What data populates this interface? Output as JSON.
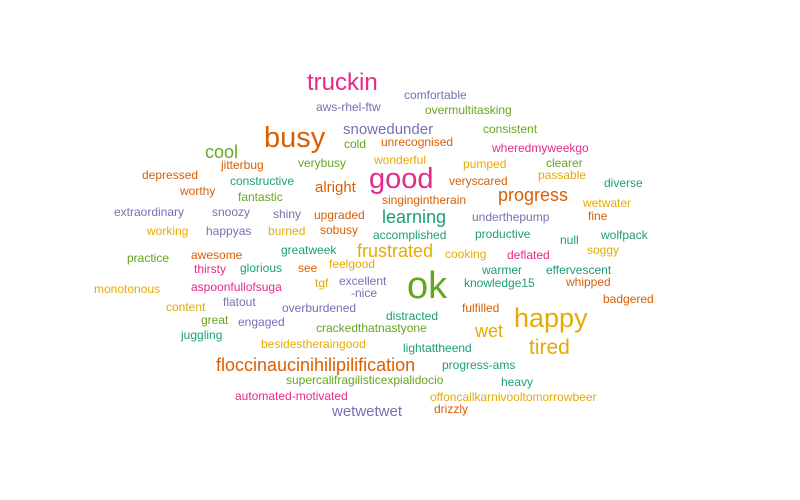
{
  "chart_data": {
    "type": "wordcloud",
    "title": "",
    "colors": {
      "pink": "#e7298a",
      "orange": "#d95f02",
      "purple": "#7570b3",
      "green": "#66a61e",
      "gold": "#e6ab02",
      "teal": "#1b9e77"
    },
    "words": [
      {
        "text": "truckin",
        "weight": 5,
        "color": "pink"
      },
      {
        "text": "comfortable",
        "weight": 1,
        "color": "purple"
      },
      {
        "text": "aws-rhel-ftw",
        "weight": 1,
        "color": "purple"
      },
      {
        "text": "overmultitasking",
        "weight": 1,
        "color": "green"
      },
      {
        "text": "busy",
        "weight": 7,
        "color": "orange"
      },
      {
        "text": "snowedunder",
        "weight": 2,
        "color": "purple"
      },
      {
        "text": "consistent",
        "weight": 1,
        "color": "green"
      },
      {
        "text": "cool",
        "weight": 3,
        "color": "green"
      },
      {
        "text": "cold",
        "weight": 1,
        "color": "green"
      },
      {
        "text": "unrecognised",
        "weight": 1,
        "color": "orange"
      },
      {
        "text": "wheredmyweekgo",
        "weight": 1,
        "color": "pink"
      },
      {
        "text": "jitterbug",
        "weight": 1,
        "color": "orange"
      },
      {
        "text": "verybusy",
        "weight": 1,
        "color": "green"
      },
      {
        "text": "wonderful",
        "weight": 1,
        "color": "gold"
      },
      {
        "text": "pumped",
        "weight": 1,
        "color": "gold"
      },
      {
        "text": "clearer",
        "weight": 1,
        "color": "green"
      },
      {
        "text": "good",
        "weight": 7,
        "color": "pink"
      },
      {
        "text": "depressed",
        "weight": 1,
        "color": "orange"
      },
      {
        "text": "constructive",
        "weight": 1,
        "color": "teal"
      },
      {
        "text": "veryscared",
        "weight": 1,
        "color": "orange"
      },
      {
        "text": "passable",
        "weight": 1,
        "color": "gold"
      },
      {
        "text": "worthy",
        "weight": 1,
        "color": "orange"
      },
      {
        "text": "alright",
        "weight": 2,
        "color": "orange"
      },
      {
        "text": "diverse",
        "weight": 1,
        "color": "teal"
      },
      {
        "text": "fantastic",
        "weight": 1,
        "color": "green"
      },
      {
        "text": "singingintherain",
        "weight": 1,
        "color": "orange"
      },
      {
        "text": "progress",
        "weight": 3,
        "color": "orange"
      },
      {
        "text": "extraordinary",
        "weight": 1,
        "color": "purple"
      },
      {
        "text": "snoozy",
        "weight": 1,
        "color": "purple"
      },
      {
        "text": "shiny",
        "weight": 1,
        "color": "purple"
      },
      {
        "text": "upgraded",
        "weight": 1,
        "color": "orange"
      },
      {
        "text": "learning",
        "weight": 3,
        "color": "teal"
      },
      {
        "text": "underthepump",
        "weight": 1,
        "color": "purple"
      },
      {
        "text": "wetwater",
        "weight": 1,
        "color": "gold"
      },
      {
        "text": "fine",
        "weight": 1,
        "color": "orange"
      },
      {
        "text": "working",
        "weight": 1,
        "color": "gold"
      },
      {
        "text": "happyas",
        "weight": 1,
        "color": "purple"
      },
      {
        "text": "burned",
        "weight": 1,
        "color": "gold"
      },
      {
        "text": "sobusy",
        "weight": 1,
        "color": "orange"
      },
      {
        "text": "accomplished",
        "weight": 1,
        "color": "teal"
      },
      {
        "text": "productive",
        "weight": 1,
        "color": "teal"
      },
      {
        "text": "null",
        "weight": 1,
        "color": "teal"
      },
      {
        "text": "wolfpack",
        "weight": 1,
        "color": "teal"
      },
      {
        "text": "greatweek",
        "weight": 1,
        "color": "teal"
      },
      {
        "text": "frustrated",
        "weight": 3,
        "color": "gold"
      },
      {
        "text": "cooking",
        "weight": 1,
        "color": "gold"
      },
      {
        "text": "deflated",
        "weight": 1,
        "color": "pink"
      },
      {
        "text": "soggy",
        "weight": 1,
        "color": "gold"
      },
      {
        "text": "practice",
        "weight": 1,
        "color": "green"
      },
      {
        "text": "awesome",
        "weight": 1,
        "color": "orange"
      },
      {
        "text": "thirsty",
        "weight": 1,
        "color": "pink"
      },
      {
        "text": "glorious",
        "weight": 1,
        "color": "teal"
      },
      {
        "text": "see",
        "weight": 1,
        "color": "orange"
      },
      {
        "text": "feelgood",
        "weight": 1,
        "color": "gold"
      },
      {
        "text": "ok",
        "weight": 10,
        "color": "green"
      },
      {
        "text": "warmer",
        "weight": 1,
        "color": "teal"
      },
      {
        "text": "effervescent",
        "weight": 1,
        "color": "teal"
      },
      {
        "text": "tgf",
        "weight": 1,
        "color": "gold"
      },
      {
        "text": "excellent",
        "weight": 1,
        "color": "purple"
      },
      {
        "text": "knowledge15",
        "weight": 1,
        "color": "teal"
      },
      {
        "text": "whipped",
        "weight": 1,
        "color": "orange"
      },
      {
        "text": "monotonous",
        "weight": 1,
        "color": "gold"
      },
      {
        "text": "aspoonfullofsuga",
        "weight": 1,
        "color": "pink"
      },
      {
        "text": "-nice",
        "weight": 1,
        "color": "purple"
      },
      {
        "text": "badgered",
        "weight": 1,
        "color": "orange"
      },
      {
        "text": "content",
        "weight": 1,
        "color": "gold"
      },
      {
        "text": "flatout",
        "weight": 1,
        "color": "purple"
      },
      {
        "text": "overburdened",
        "weight": 1,
        "color": "purple"
      },
      {
        "text": "fulfilled",
        "weight": 1,
        "color": "orange"
      },
      {
        "text": "happy",
        "weight": 6,
        "color": "gold"
      },
      {
        "text": "distracted",
        "weight": 1,
        "color": "teal"
      },
      {
        "text": "great",
        "weight": 1,
        "color": "green"
      },
      {
        "text": "engaged",
        "weight": 1,
        "color": "purple"
      },
      {
        "text": "crackedthatnastyone",
        "weight": 1,
        "color": "green"
      },
      {
        "text": "wet",
        "weight": 3,
        "color": "gold"
      },
      {
        "text": "juggling",
        "weight": 1,
        "color": "teal"
      },
      {
        "text": "besidestheraingood",
        "weight": 1,
        "color": "gold"
      },
      {
        "text": "lightattheend",
        "weight": 1,
        "color": "teal"
      },
      {
        "text": "tired",
        "weight": 4,
        "color": "gold"
      },
      {
        "text": "floccinaucinihilipilification",
        "weight": 3,
        "color": "orange"
      },
      {
        "text": "progress-ams",
        "weight": 1,
        "color": "teal"
      },
      {
        "text": "supercalifragilisticexpialidocio",
        "weight": 1,
        "color": "green"
      },
      {
        "text": "heavy",
        "weight": 1,
        "color": "teal"
      },
      {
        "text": "automated-motivated",
        "weight": 1,
        "color": "pink"
      },
      {
        "text": "offoncallkarnivooltomorrowbeer",
        "weight": 1,
        "color": "gold"
      },
      {
        "text": "wetwetwet",
        "weight": 2,
        "color": "purple"
      },
      {
        "text": "drizzly",
        "weight": 1,
        "color": "orange"
      }
    ]
  }
}
